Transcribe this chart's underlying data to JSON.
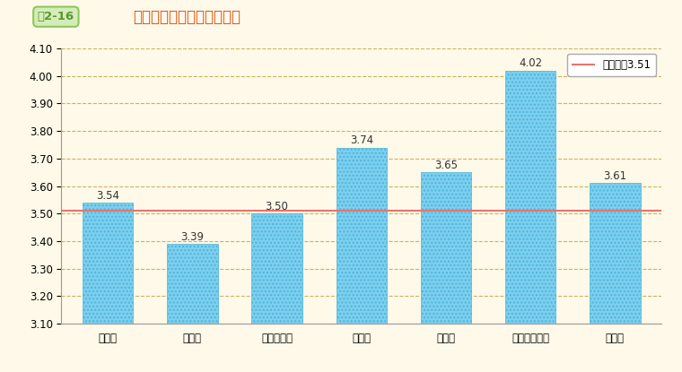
{
  "title_label": "職制段階別の回答の平均値",
  "fig_label": "図2-16",
  "categories": [
    "係員級",
    "係長級",
    "課長補佐級",
    "室長級",
    "課長級",
    "審議官級以上",
    "その他"
  ],
  "values": [
    3.54,
    3.39,
    3.5,
    3.74,
    3.65,
    4.02,
    3.61
  ],
  "mean_line": 3.51,
  "mean_label": "総平均値3.51",
  "ylim": [
    3.1,
    4.1
  ],
  "yticks": [
    3.1,
    3.2,
    3.3,
    3.4,
    3.5,
    3.6,
    3.7,
    3.8,
    3.9,
    4.0,
    4.1
  ],
  "bar_color": "#7dcfed",
  "bar_edge_color": "#4ab4de",
  "hatch_pattern": "....",
  "mean_line_color": "#e8736c",
  "grid_color": "#c8b464",
  "background_color": "#fef9e8",
  "plot_bg_color": "#fef9e8",
  "fig_label_bg": "#d4edb8",
  "fig_label_border": "#8dc85a",
  "fig_label_text": "#5a9632",
  "title_color": "#e05010",
  "title_fontsize": 12,
  "label_fontsize": 8.5,
  "tick_fontsize": 8.5,
  "value_fontsize": 8.5
}
